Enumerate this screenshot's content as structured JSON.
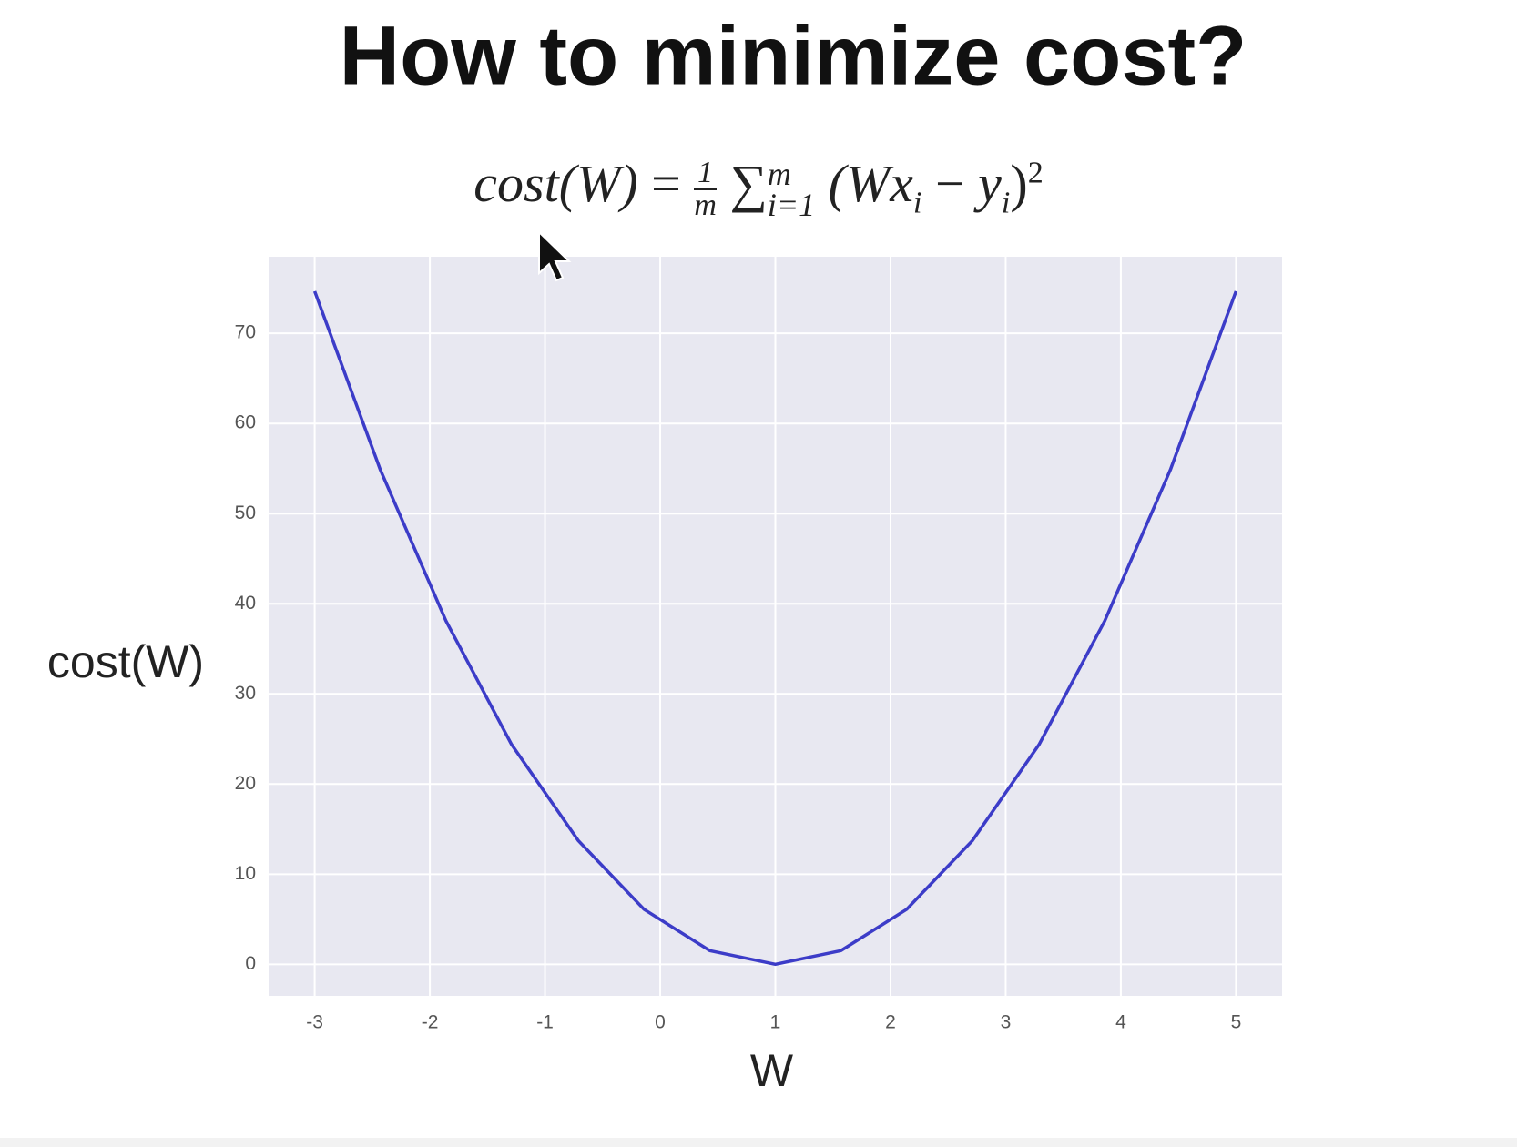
{
  "title": "How to minimize cost?",
  "formula": {
    "lhs": "cost(W)",
    "equals": "=",
    "numerator": "1",
    "denominator": "m",
    "sum": "∑",
    "upper": "m",
    "lower": "i=1",
    "term1": "(Wx",
    "sub1": "i",
    "minus": "−",
    "term2": "y",
    "sub2": "i",
    "close": ")",
    "power": "2"
  },
  "chart_data": {
    "type": "line",
    "x_label": "W",
    "y_label": "cost(W)",
    "x": [
      -3,
      -2.43,
      -1.86,
      -1.29,
      -0.71,
      -0.14,
      0.43,
      1,
      1.57,
      2.14,
      2.71,
      3.29,
      3.86,
      4.43,
      5
    ],
    "values": [
      74.67,
      54.86,
      38.1,
      24.38,
      13.71,
      6.1,
      1.52,
      0,
      1.52,
      6.1,
      13.71,
      24.38,
      38.1,
      54.86,
      74.67
    ],
    "color": "#3c3cc8",
    "xlim": [
      -3.4,
      5.4
    ],
    "xticks": [
      -3,
      -2,
      -1,
      0,
      1,
      2,
      3,
      4,
      5
    ],
    "ylim": [
      -3.5,
      78.5
    ],
    "yticks": [
      0,
      10,
      20,
      30,
      40,
      50,
      60,
      70
    ],
    "grid": true
  }
}
